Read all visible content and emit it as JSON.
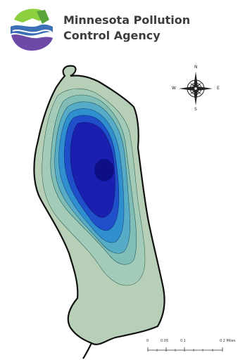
{
  "header": {
    "agency_line1": "Minnesota Pollution",
    "agency_line2": "Control Agency"
  },
  "compass": {
    "north": "N",
    "south": "S",
    "east": "E",
    "west": "W"
  },
  "scale": {
    "labels": [
      "0",
      "0.05",
      "0.1",
      "0.2 Miles"
    ]
  },
  "colors": {
    "shore": "#b7cfb7",
    "depth_1": "#8fc3b5",
    "depth_2": "#5fb3c4",
    "depth_3": "#2f8fcf",
    "depth_4": "#1f4fc9",
    "depth_5": "#1a1fb0",
    "deepest": "#0b0b7a",
    "outline": "#111111"
  }
}
